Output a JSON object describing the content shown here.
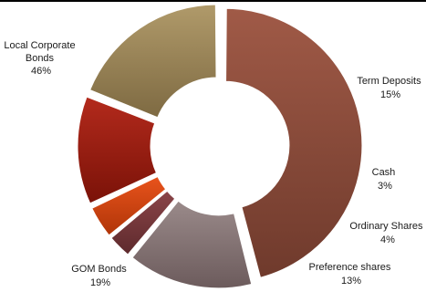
{
  "chart_data": {
    "type": "pie",
    "subtype": "donut",
    "title": "",
    "legend": "none",
    "slices": [
      {
        "name": "Local Corporate Bonds",
        "value": 46,
        "label": "46%",
        "color": "#a05a47",
        "color_dark": "#6f3a2c"
      },
      {
        "name": "Term Deposits",
        "value": 15,
        "label": "15%",
        "color": "#9a8a8a",
        "color_dark": "#6c5b5c"
      },
      {
        "name": "Cash",
        "value": 3,
        "label": "3%",
        "color": "#8a4448",
        "color_dark": "#5e2a2d"
      },
      {
        "name": "Ordinary Shares",
        "value": 4,
        "label": "4%",
        "color": "#e8531c",
        "color_dark": "#b03508"
      },
      {
        "name": "Preference shares",
        "value": 13,
        "label": "13%",
        "color": "#b32a1c",
        "color_dark": "#7a1208"
      },
      {
        "name": "GOM Bonds",
        "value": 19,
        "label": "19%",
        "color": "#b09a6a",
        "color_dark": "#7e6a42"
      }
    ]
  }
}
